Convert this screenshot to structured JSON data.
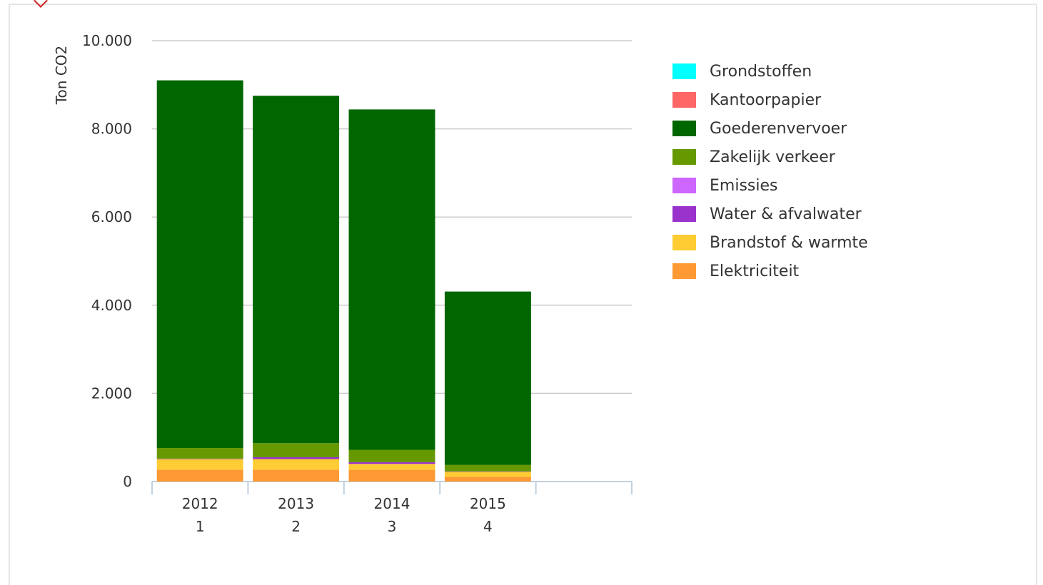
{
  "chart_data": {
    "type": "bar",
    "stacked": true,
    "ylabel": "Ton CO2",
    "ylim": [
      0,
      10000
    ],
    "yticks": [
      0,
      2000,
      4000,
      6000,
      8000,
      10000
    ],
    "ytick_labels": [
      "0",
      "2.000",
      "4.000",
      "6.000",
      "8.000",
      "10.000"
    ],
    "categories": [
      {
        "year": "2012",
        "index": "1"
      },
      {
        "year": "2013",
        "index": "2"
      },
      {
        "year": "2014",
        "index": "3"
      },
      {
        "year": "2015",
        "index": "4"
      },
      {
        "year": "",
        "index": ""
      }
    ],
    "series": [
      {
        "name": "Elektriciteit",
        "color": "#ff9933",
        "values": [
          270,
          270,
          270,
          110,
          0
        ]
      },
      {
        "name": "Brandstof & warmte",
        "color": "#ffcc33",
        "values": [
          240,
          240,
          130,
          110,
          0
        ]
      },
      {
        "name": "Water & afvalwater",
        "color": "#9933cc",
        "values": [
          10,
          40,
          40,
          10,
          0
        ]
      },
      {
        "name": "Emissies",
        "color": "#cc66ff",
        "values": [
          0,
          0,
          0,
          0,
          0
        ]
      },
      {
        "name": "Zakelijk verkeer",
        "color": "#669900",
        "values": [
          240,
          320,
          280,
          150,
          0
        ]
      },
      {
        "name": "Goederenvervoer",
        "color": "#006600",
        "values": [
          8340,
          7880,
          7720,
          3930,
          0
        ]
      },
      {
        "name": "Kantoorpapier",
        "color": "#ff6666",
        "values": [
          0,
          0,
          0,
          0,
          0
        ]
      },
      {
        "name": "Grondstoffen",
        "color": "#00ffff",
        "values": [
          0,
          0,
          0,
          0,
          0
        ]
      }
    ],
    "legend_position": "right",
    "legend_order": [
      "Grondstoffen",
      "Kantoorpapier",
      "Goederenvervoer",
      "Zakelijk verkeer",
      "Emissies",
      "Water & afvalwater",
      "Brandstof & warmte",
      "Elektriciteit"
    ],
    "grid": true
  }
}
